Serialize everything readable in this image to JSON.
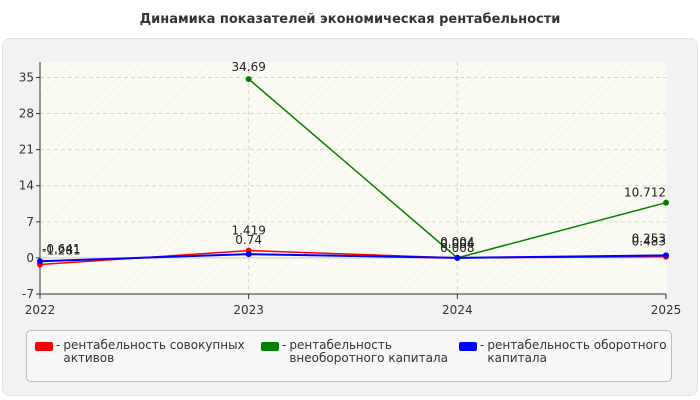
{
  "chart_data": {
    "type": "line",
    "title": "Динамика показателей экономическая рентабельности",
    "xlabel": "",
    "ylabel": "",
    "categories": [
      "2022",
      "2023",
      "2024",
      "2025"
    ],
    "ylim": [
      -7,
      38
    ],
    "yticks": [
      "35",
      "28",
      "21",
      "14",
      "7",
      "0",
      "-7"
    ],
    "grid": true,
    "legend_position": "bottom",
    "series": [
      {
        "name": "рентабельность совокупных активов",
        "color": "#ff0000",
        "values": [
          -1.281,
          1.419,
          0.004,
          0.253
        ],
        "labels": [
          "-1.281",
          "1.419",
          "0.004",
          "0.253"
        ]
      },
      {
        "name": "рентабельность внеоборотного капитала",
        "color": "#008000",
        "values": [
          null,
          34.69,
          0.008,
          10.712
        ],
        "labels": [
          "",
          "34.69",
          "0.008",
          "10.712"
        ]
      },
      {
        "name": "рентабельность оборотного капитала",
        "color": "#0000ff",
        "values": [
          -0.641,
          0.74,
          0.004,
          0.483
        ],
        "labels": [
          "-0.641",
          "0.74",
          "0.004",
          "0.483"
        ]
      }
    ]
  }
}
